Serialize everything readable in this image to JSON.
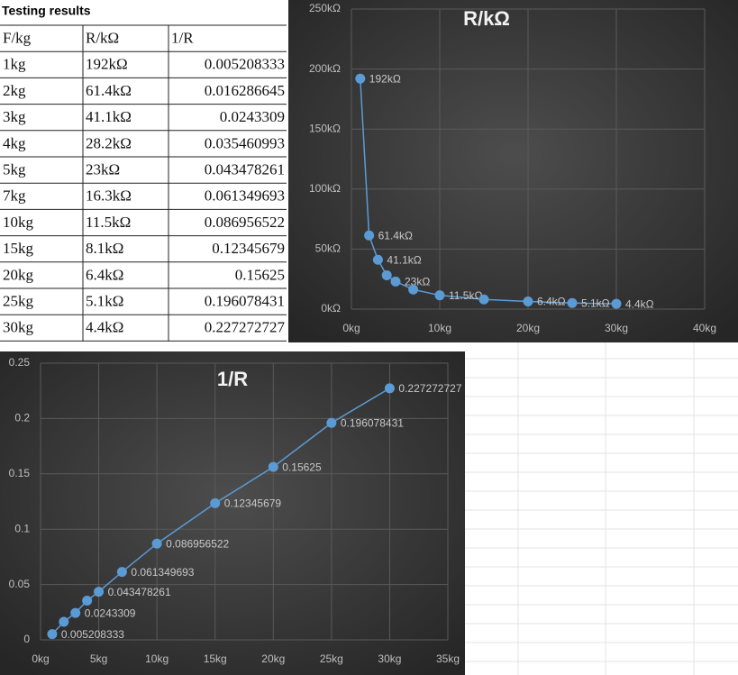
{
  "title": "Testing results",
  "table": {
    "header": [
      "F/kg",
      "R/kΩ",
      "1/R"
    ],
    "rows": [
      [
        "1kg",
        "192kΩ",
        "0.005208333"
      ],
      [
        "2kg",
        "61.4kΩ",
        "0.016286645"
      ],
      [
        "3kg",
        "41.1kΩ",
        "0.0243309"
      ],
      [
        "4kg",
        "28.2kΩ",
        "0.035460993"
      ],
      [
        "5kg",
        "23kΩ",
        "0.043478261"
      ],
      [
        "7kg",
        "16.3kΩ",
        "0.061349693"
      ],
      [
        "10kg",
        "11.5kΩ",
        "0.086956522"
      ],
      [
        "15kg",
        "8.1kΩ",
        "0.12345679"
      ],
      [
        "20kg",
        "6.4kΩ",
        "0.15625"
      ],
      [
        "25kg",
        "5.1kΩ",
        "0.196078431"
      ],
      [
        "30kg",
        "4.4kΩ",
        "0.227272727"
      ]
    ]
  },
  "chart_data": [
    {
      "type": "line",
      "title": "R/kΩ",
      "color": "#5b9bd5",
      "grid": true,
      "x": [
        1,
        2,
        3,
        4,
        5,
        7,
        10,
        15,
        20,
        25,
        30
      ],
      "values": [
        192,
        61.4,
        41.1,
        28.2,
        23,
        16.3,
        11.5,
        8.1,
        6.4,
        5.1,
        4.4
      ],
      "value_labels": [
        "192kΩ",
        "61.4kΩ",
        "41.1kΩ",
        null,
        "23kΩ",
        null,
        "11.5kΩ",
        null,
        "6.4kΩ",
        "5.1kΩ",
        "4.4kΩ"
      ],
      "xlim": [
        0,
        40
      ],
      "xticks": [
        {
          "value": 0,
          "label": "0kg"
        },
        {
          "value": 10,
          "label": "10kg"
        },
        {
          "value": 20,
          "label": "20kg"
        },
        {
          "value": 30,
          "label": "30kg"
        },
        {
          "value": 40,
          "label": "40kg"
        }
      ],
      "ylim": [
        0,
        250
      ],
      "yticks": [
        {
          "value": 0,
          "label": "0kΩ"
        },
        {
          "value": 50,
          "label": "50kΩ"
        },
        {
          "value": 100,
          "label": "100kΩ"
        },
        {
          "value": 150,
          "label": "150kΩ"
        },
        {
          "value": 200,
          "label": "200kΩ"
        },
        {
          "value": 250,
          "label": "250kΩ"
        }
      ]
    },
    {
      "type": "line",
      "title": "1/R",
      "color": "#5b9bd5",
      "grid": true,
      "x": [
        1,
        2,
        3,
        4,
        5,
        7,
        10,
        15,
        20,
        25,
        30
      ],
      "values": [
        0.005208333,
        0.016286645,
        0.0243309,
        0.035460993,
        0.043478261,
        0.061349693,
        0.086956522,
        0.12345679,
        0.15625,
        0.196078431,
        0.227272727
      ],
      "value_labels": [
        "0.005208333",
        null,
        "0.0243309",
        null,
        "0.043478261",
        "0.061349693",
        "0.086956522",
        "0.12345679",
        "0.15625",
        "0.196078431",
        "0.227272727"
      ],
      "xlim": [
        0,
        35
      ],
      "xticks": [
        {
          "value": 0,
          "label": "0kg"
        },
        {
          "value": 5,
          "label": "5kg"
        },
        {
          "value": 10,
          "label": "10kg"
        },
        {
          "value": 15,
          "label": "15kg"
        },
        {
          "value": 20,
          "label": "20kg"
        },
        {
          "value": 25,
          "label": "25kg"
        },
        {
          "value": 30,
          "label": "30kg"
        },
        {
          "value": 35,
          "label": "35kg"
        }
      ],
      "ylim": [
        0,
        0.25
      ],
      "yticks": [
        0,
        0.05,
        0.1,
        0.15,
        0.2,
        0.25
      ]
    }
  ]
}
